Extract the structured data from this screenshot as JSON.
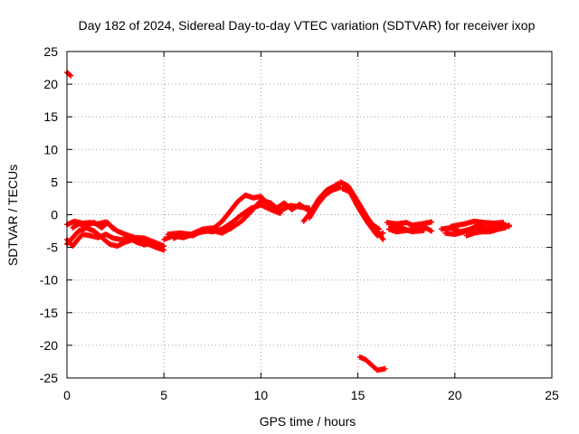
{
  "chart_data": {
    "type": "scatter",
    "title": "Day 182 of 2024, Sidereal Day-to-day VTEC variation (SDTVAR) for receiver ixop",
    "xlabel": "GPS time / hours",
    "ylabel": "SDTVAR / TECUs",
    "xlim": [
      0,
      25
    ],
    "ylim": [
      -25,
      25
    ],
    "xticks": [
      0,
      5,
      10,
      15,
      20,
      25
    ],
    "yticks": [
      -25,
      -20,
      -15,
      -10,
      -5,
      0,
      5,
      10,
      15,
      20,
      25
    ],
    "xtick_labels": [
      "0",
      "5",
      "10",
      "15",
      "20",
      "25"
    ],
    "ytick_labels": [
      "-25",
      "-20",
      "-15",
      "-10",
      "-5",
      "0",
      "5",
      "10",
      "15",
      "20",
      "25"
    ],
    "grid": true,
    "legend": "none",
    "marker": "+",
    "series": [
      {
        "name": "SDTVAR",
        "color": "#ff0000",
        "tracks": [
          [
            [
              0.0,
              21.8
            ],
            [
              0.2,
              21.3
            ]
          ],
          [
            [
              0.0,
              -1.5
            ],
            [
              0.4,
              -1.0
            ],
            [
              0.8,
              -1.3
            ],
            [
              1.2,
              -1.2
            ],
            [
              1.6,
              -1.4
            ],
            [
              2.0,
              -1.1
            ],
            [
              2.3,
              -1.8
            ],
            [
              2.6,
              -2.5
            ],
            [
              3.0,
              -3.0
            ],
            [
              3.5,
              -3.5
            ],
            [
              4.0,
              -3.6
            ],
            [
              4.5,
              -4.2
            ],
            [
              5.0,
              -4.8
            ]
          ],
          [
            [
              0.0,
              -4.5
            ],
            [
              0.3,
              -3.5
            ],
            [
              0.6,
              -2.5
            ],
            [
              1.0,
              -2.0
            ],
            [
              1.4,
              -2.5
            ],
            [
              1.8,
              -3.5
            ],
            [
              2.2,
              -4.5
            ],
            [
              2.6,
              -4.8
            ],
            [
              3.0,
              -4.2
            ],
            [
              3.4,
              -3.8
            ],
            [
              3.8,
              -4.0
            ],
            [
              4.2,
              -4.5
            ],
            [
              4.6,
              -5.0
            ],
            [
              5.0,
              -5.4
            ]
          ],
          [
            [
              0.0,
              -3.8
            ],
            [
              0.3,
              -4.8
            ],
            [
              0.5,
              -4.0
            ],
            [
              0.8,
              -3.0
            ],
            [
              1.2,
              -3.2
            ],
            [
              1.6,
              -3.5
            ],
            [
              2.0,
              -3.0
            ],
            [
              2.4,
              -3.6
            ],
            [
              2.8,
              -3.8
            ],
            [
              3.2,
              -3.6
            ],
            [
              3.6,
              -4.2
            ],
            [
              4.0,
              -4.6
            ],
            [
              4.4,
              -4.2
            ]
          ],
          [
            [
              0.3,
              -2.0
            ],
            [
              0.6,
              -1.4
            ],
            [
              1.0,
              -1.6
            ],
            [
              1.4,
              -1.2
            ],
            [
              1.8,
              -2.0
            ],
            [
              2.1,
              -1.2
            ],
            [
              2.4,
              -2.2
            ]
          ],
          [
            [
              5.0,
              -3.8
            ],
            [
              5.5,
              -3.2
            ],
            [
              6.0,
              -3.5
            ],
            [
              6.5,
              -3.0
            ],
            [
              7.0,
              -2.6
            ],
            [
              7.5,
              -2.4
            ],
            [
              8.0,
              -2.8
            ],
            [
              8.5,
              -2.0
            ],
            [
              9.0,
              -1.0
            ],
            [
              9.5,
              0.5
            ],
            [
              10.0,
              2.2
            ],
            [
              10.5,
              1.8
            ],
            [
              11.0,
              0.6
            ],
            [
              11.5,
              1.4
            ],
            [
              12.0,
              1.2
            ],
            [
              12.5,
              1.0
            ]
          ],
          [
            [
              5.2,
              -3.0
            ],
            [
              5.8,
              -2.8
            ],
            [
              6.4,
              -3.0
            ],
            [
              7.0,
              -2.2
            ],
            [
              7.6,
              -2.0
            ],
            [
              8.0,
              -1.0
            ],
            [
              8.4,
              0.5
            ],
            [
              8.8,
              2.0
            ],
            [
              9.2,
              3.0
            ],
            [
              9.6,
              2.6
            ],
            [
              10.0,
              2.8
            ],
            [
              10.4,
              1.5
            ],
            [
              10.8,
              1.0
            ],
            [
              11.2,
              1.8
            ],
            [
              11.6,
              0.8
            ],
            [
              12.0,
              1.6
            ],
            [
              12.5,
              0.5
            ]
          ],
          [
            [
              5.5,
              -3.6
            ],
            [
              6.0,
              -3.0
            ],
            [
              6.5,
              -3.2
            ],
            [
              7.0,
              -2.4
            ],
            [
              7.5,
              -2.6
            ],
            [
              8.0,
              -2.2
            ],
            [
              8.5,
              -1.2
            ],
            [
              9.0,
              0.0
            ],
            [
              9.5,
              1.0
            ],
            [
              10.0,
              1.5
            ],
            [
              10.5,
              0.8
            ],
            [
              11.0,
              0.2
            ]
          ],
          [
            [
              12.2,
              -1.0
            ],
            [
              12.6,
              0.5
            ],
            [
              13.0,
              2.5
            ],
            [
              13.4,
              3.8
            ],
            [
              13.8,
              4.4
            ],
            [
              14.0,
              4.8
            ]
          ],
          [
            [
              12.5,
              -0.5
            ],
            [
              12.9,
              1.5
            ],
            [
              13.3,
              3.0
            ],
            [
              13.7,
              3.8
            ],
            [
              14.1,
              4.2
            ]
          ],
          [
            [
              14.1,
              5.0
            ],
            [
              14.5,
              4.4
            ],
            [
              15.0,
              2.0
            ],
            [
              15.5,
              -0.5
            ],
            [
              16.0,
              -2.5
            ],
            [
              16.3,
              -3.8
            ]
          ],
          [
            [
              14.2,
              4.0
            ],
            [
              14.6,
              3.5
            ],
            [
              15.0,
              1.2
            ],
            [
              15.5,
              -1.2
            ],
            [
              16.0,
              -3.2
            ],
            [
              16.3,
              -2.8
            ]
          ],
          [
            [
              14.3,
              4.6
            ],
            [
              14.7,
              3.0
            ],
            [
              15.2,
              0.8
            ],
            [
              15.7,
              -1.4
            ],
            [
              16.1,
              -2.2
            ]
          ],
          [
            [
              16.5,
              -1.2
            ],
            [
              17.0,
              -1.4
            ],
            [
              17.5,
              -1.2
            ],
            [
              17.8,
              -1.6
            ],
            [
              18.3,
              -1.4
            ],
            [
              18.8,
              -1.1
            ]
          ],
          [
            [
              16.6,
              -2.2
            ],
            [
              17.0,
              -2.6
            ],
            [
              17.5,
              -2.4
            ],
            [
              18.0,
              -2.2
            ],
            [
              18.5,
              -2.0
            ],
            [
              18.8,
              -2.5
            ]
          ],
          [
            [
              16.7,
              -1.8
            ],
            [
              17.2,
              -2.0
            ],
            [
              17.8,
              -2.6
            ],
            [
              18.4,
              -2.4
            ]
          ],
          [
            [
              19.3,
              -2.2
            ],
            [
              19.8,
              -2.0
            ],
            [
              20.3,
              -2.6
            ],
            [
              20.8,
              -2.2
            ],
            [
              21.2,
              -1.6
            ],
            [
              21.6,
              -2.0
            ],
            [
              22.0,
              -1.8
            ],
            [
              22.5,
              -1.6
            ],
            [
              22.8,
              -1.8
            ]
          ],
          [
            [
              19.5,
              -2.8
            ],
            [
              20.0,
              -3.0
            ],
            [
              20.5,
              -2.6
            ],
            [
              21.0,
              -2.0
            ],
            [
              21.5,
              -2.2
            ],
            [
              22.0,
              -2.4
            ],
            [
              22.5,
              -2.0
            ],
            [
              22.8,
              -1.6
            ]
          ],
          [
            [
              19.8,
              -1.8
            ],
            [
              20.5,
              -1.4
            ],
            [
              21.0,
              -1.0
            ],
            [
              21.5,
              -1.2
            ],
            [
              22.0,
              -1.3
            ],
            [
              22.5,
              -1.2
            ]
          ],
          [
            [
              20.6,
              -3.2
            ],
            [
              21.0,
              -2.8
            ],
            [
              21.4,
              -2.6
            ],
            [
              21.8,
              -2.6
            ],
            [
              22.2,
              -2.2
            ],
            [
              22.6,
              -2.0
            ]
          ],
          [
            [
              15.1,
              -21.8
            ],
            [
              15.4,
              -22.2
            ],
            [
              15.7,
              -23.0
            ],
            [
              16.0,
              -23.8
            ],
            [
              16.4,
              -23.6
            ]
          ]
        ]
      }
    ]
  }
}
